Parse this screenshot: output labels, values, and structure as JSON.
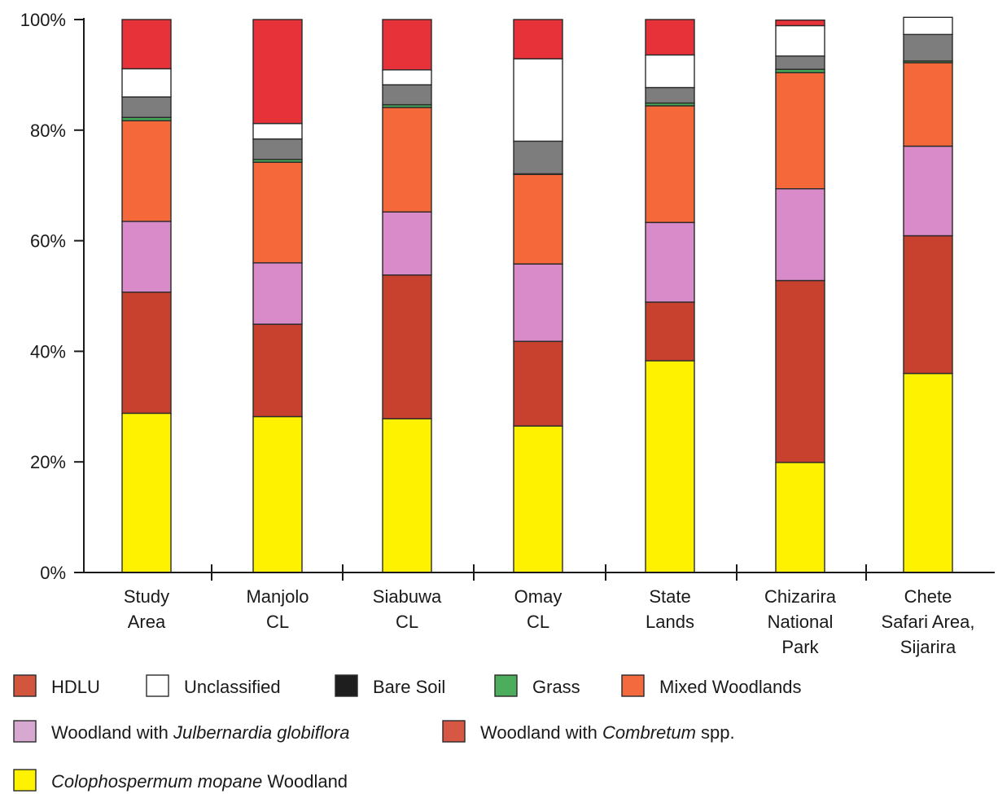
{
  "chart_data": {
    "type": "bar",
    "stacked": true,
    "normalized_percent": true,
    "categories": [
      [
        "Study",
        "Area"
      ],
      [
        "Manjolo",
        "CL"
      ],
      [
        "Siabuwa",
        "CL"
      ],
      [
        "Omay",
        "CL"
      ],
      [
        "State",
        "Lands"
      ],
      [
        "Chizarira",
        "National",
        "Park"
      ],
      [
        "Chete",
        "Safari Area,",
        "Sijarira"
      ]
    ],
    "y_ticks": [
      "0%",
      "20%",
      "40%",
      "60%",
      "80%",
      "100%"
    ],
    "ylim": [
      0,
      100
    ],
    "series": [
      {
        "name": "Colophospermum mopane Woodland",
        "color": "#fff200",
        "values": [
          28.8,
          28.2,
          27.8,
          26.5,
          38.3,
          19.9,
          36.0
        ]
      },
      {
        "name": "Woodland with Combretum spp.",
        "color": "#c8412e",
        "values": [
          21.9,
          16.7,
          26.0,
          15.3,
          10.6,
          32.9,
          24.9
        ]
      },
      {
        "name": "Woodland with Julbernardia globiflora",
        "color": "#d98ac8",
        "values": [
          12.8,
          11.1,
          11.4,
          14.0,
          14.4,
          16.6,
          16.2
        ]
      },
      {
        "name": "Mixed Woodlands",
        "color": "#f4683a",
        "values": [
          18.2,
          18.2,
          18.9,
          16.2,
          21.1,
          21.0,
          15.1
        ]
      },
      {
        "name": "Grass",
        "color": "#47a85a",
        "values": [
          0.6,
          0.5,
          0.5,
          0.1,
          0.5,
          0.6,
          0.3
        ]
      },
      {
        "name": "Bare Soil",
        "color": "#7d7d7d",
        "values": [
          3.7,
          3.7,
          3.6,
          5.9,
          2.8,
          2.4,
          4.8
        ]
      },
      {
        "name": "Unclassified",
        "color": "#ffffff",
        "values": [
          5.1,
          2.8,
          2.7,
          14.9,
          5.9,
          5.5,
          3.1
        ]
      },
      {
        "name": "HDLU",
        "color": "#e8323a",
        "values": [
          8.9,
          18.8,
          9.1,
          7.1,
          6.4,
          1.0,
          0.0
        ]
      }
    ],
    "legend": {
      "placement": "bottom",
      "rows": [
        [
          {
            "key": "hdlu",
            "swatch": "#d2553e",
            "parts": [
              {
                "t": "HDLU",
                "i": false
              }
            ]
          },
          {
            "key": "unclassified",
            "swatch": "#ffffff",
            "parts": [
              {
                "t": "Unclassified",
                "i": false
              }
            ]
          },
          {
            "key": "bare-soil",
            "swatch": "#1e1e1e",
            "parts": [
              {
                "t": "Bare Soil",
                "i": false
              }
            ]
          },
          {
            "key": "grass",
            "swatch": "#4cae5c",
            "parts": [
              {
                "t": "Grass",
                "i": false
              }
            ]
          },
          {
            "key": "mixed-woodlands",
            "swatch": "#f26a3e",
            "parts": [
              {
                "t": "Mixed Woodlands",
                "i": false
              }
            ]
          }
        ],
        [
          {
            "key": "julbernardia",
            "swatch": "#d8a9d0",
            "parts": [
              {
                "t": "Woodland with ",
                "i": false
              },
              {
                "t": "Julbernardia globiflora",
                "i": true
              }
            ]
          },
          {
            "key": "combretum",
            "swatch": "#d65744",
            "parts": [
              {
                "t": "Woodland with ",
                "i": false
              },
              {
                "t": "Combretum",
                "i": true
              },
              {
                "t": " spp.",
                "i": false
              }
            ]
          }
        ],
        [
          {
            "key": "mopane",
            "swatch": "#fff200",
            "parts": [
              {
                "t": "Colophospermum mopane",
                "i": true
              },
              {
                "t": " Woodland",
                "i": false
              }
            ]
          }
        ]
      ]
    },
    "grid": false,
    "title": "",
    "xlabel": "",
    "ylabel": ""
  }
}
